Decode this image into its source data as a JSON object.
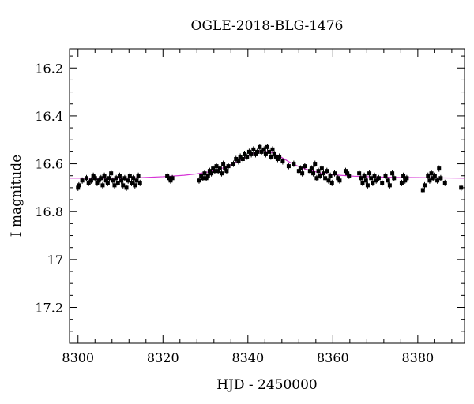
{
  "chart_data": {
    "type": "scatter",
    "title": "OGLE-2018-BLG-1476",
    "xlabel": "HJD - 2450000",
    "ylabel": "I magnitude",
    "xlim": [
      8298,
      8391
    ],
    "ylim": [
      17.35,
      16.12
    ],
    "y_inverted": true,
    "grid": false,
    "x_ticks": [
      8300,
      8320,
      8340,
      8360,
      8380
    ],
    "x_tick_labels": [
      "8300",
      "8320",
      "8340",
      "8360",
      "8380"
    ],
    "y_ticks": [
      16.2,
      16.4,
      16.6,
      16.8,
      17,
      17.2
    ],
    "y_tick_labels": [
      "16.2",
      "16.4",
      "16.6",
      "16.8",
      "17",
      "17.2"
    ],
    "colors": {
      "points": "#000000",
      "model": "#d633d6",
      "frame": "#000000"
    },
    "model": {
      "name": "",
      "x": [
        8298,
        8305,
        8310,
        8315,
        8320,
        8325,
        8328,
        8331,
        8334,
        8336,
        8338,
        8340,
        8342,
        8343,
        8344,
        8345,
        8346,
        8348,
        8350,
        8352,
        8354,
        8357,
        8360,
        8365,
        8370,
        8375,
        8380,
        8385,
        8391
      ],
      "y": [
        16.66,
        16.66,
        16.66,
        16.658,
        16.654,
        16.648,
        16.642,
        16.633,
        16.618,
        16.604,
        16.587,
        16.568,
        16.552,
        16.548,
        16.547,
        16.55,
        16.556,
        16.574,
        16.595,
        16.612,
        16.625,
        16.638,
        16.646,
        16.652,
        16.655,
        16.657,
        16.658,
        16.659,
        16.66
      ]
    },
    "series": [
      {
        "x": [
          8300.0,
          8300.2,
          8301.0,
          8302.0,
          8302.5,
          8303.1,
          8303.6,
          8304.0,
          8304.5,
          8304.9,
          8305.4,
          8305.8,
          8306.2,
          8306.6,
          8307.0,
          8307.4,
          8307.8,
          8308.2,
          8308.6,
          8309.0,
          8309.4,
          8309.8,
          8310.2,
          8310.6,
          8311.0,
          8311.4,
          8311.8,
          8312.2,
          8312.6,
          8313.0,
          8313.4,
          8313.8,
          8314.2,
          8314.6,
          8321.0,
          8321.4,
          8321.8,
          8322.2,
          8328.5,
          8329.0,
          8329.4,
          8329.8,
          8330.2,
          8330.6,
          8331.0,
          8331.4,
          8331.8,
          8332.2,
          8332.6,
          8333.0,
          8333.4,
          8333.8,
          8334.2,
          8334.6,
          8335.0,
          8335.4,
          8336.6,
          8337.2,
          8337.8,
          8338.2,
          8338.8,
          8339.2,
          8339.8,
          8340.3,
          8340.8,
          8341.3,
          8341.8,
          8342.2,
          8342.8,
          8343.2,
          8343.8,
          8344.2,
          8344.6,
          8345.0,
          8345.4,
          8345.8,
          8346.2,
          8346.6,
          8347.0,
          8347.4,
          8348.2,
          8349.6,
          8350.8,
          8352.0,
          8352.4,
          8352.8,
          8353.4,
          8354.6,
          8355.0,
          8355.4,
          8355.8,
          8356.2,
          8356.6,
          8357.0,
          8357.4,
          8357.8,
          8358.2,
          8358.6,
          8359.0,
          8359.4,
          8359.8,
          8360.4,
          8361.2,
          8361.6,
          8363.0,
          8363.4,
          8363.8,
          8366.2,
          8366.6,
          8367.0,
          8367.4,
          8367.8,
          8368.2,
          8368.6,
          8369.0,
          8369.4,
          8369.8,
          8370.2,
          8370.8,
          8371.6,
          8372.4,
          8373.0,
          8373.4,
          8374.0,
          8374.4,
          8376.2,
          8376.6,
          8377.0,
          8377.4,
          8381.2,
          8381.6,
          8382.4,
          8382.8,
          8383.2,
          8383.6,
          8384.0,
          8384.6,
          8385.0,
          8385.4,
          8386.4,
          8390.2
        ],
        "y": [
          16.7,
          16.69,
          16.67,
          16.66,
          16.68,
          16.67,
          16.65,
          16.66,
          16.68,
          16.67,
          16.66,
          16.69,
          16.65,
          16.67,
          16.68,
          16.66,
          16.64,
          16.67,
          16.69,
          16.66,
          16.68,
          16.65,
          16.67,
          16.69,
          16.66,
          16.7,
          16.67,
          16.65,
          16.68,
          16.66,
          16.69,
          16.67,
          16.65,
          16.68,
          16.65,
          16.66,
          16.67,
          16.66,
          16.67,
          16.65,
          16.66,
          16.64,
          16.66,
          16.65,
          16.63,
          16.64,
          16.62,
          16.63,
          16.61,
          16.63,
          16.62,
          16.64,
          16.6,
          16.62,
          16.63,
          16.61,
          16.6,
          16.58,
          16.59,
          16.57,
          16.58,
          16.56,
          16.57,
          16.55,
          16.56,
          16.54,
          16.56,
          16.55,
          16.53,
          16.55,
          16.54,
          16.56,
          16.53,
          16.55,
          16.57,
          16.54,
          16.56,
          16.57,
          16.58,
          16.57,
          16.59,
          16.61,
          16.6,
          16.63,
          16.62,
          16.64,
          16.61,
          16.63,
          16.62,
          16.64,
          16.6,
          16.66,
          16.63,
          16.65,
          16.62,
          16.64,
          16.66,
          16.63,
          16.67,
          16.65,
          16.68,
          16.64,
          16.66,
          16.67,
          16.63,
          16.64,
          16.65,
          16.64,
          16.66,
          16.68,
          16.65,
          16.67,
          16.69,
          16.64,
          16.66,
          16.68,
          16.65,
          16.67,
          16.66,
          16.68,
          16.65,
          16.67,
          16.69,
          16.64,
          16.66,
          16.68,
          16.65,
          16.67,
          16.66,
          16.71,
          16.69,
          16.65,
          16.67,
          16.64,
          16.66,
          16.65,
          16.67,
          16.62,
          16.66,
          16.68,
          16.7
        ]
      }
    ]
  }
}
